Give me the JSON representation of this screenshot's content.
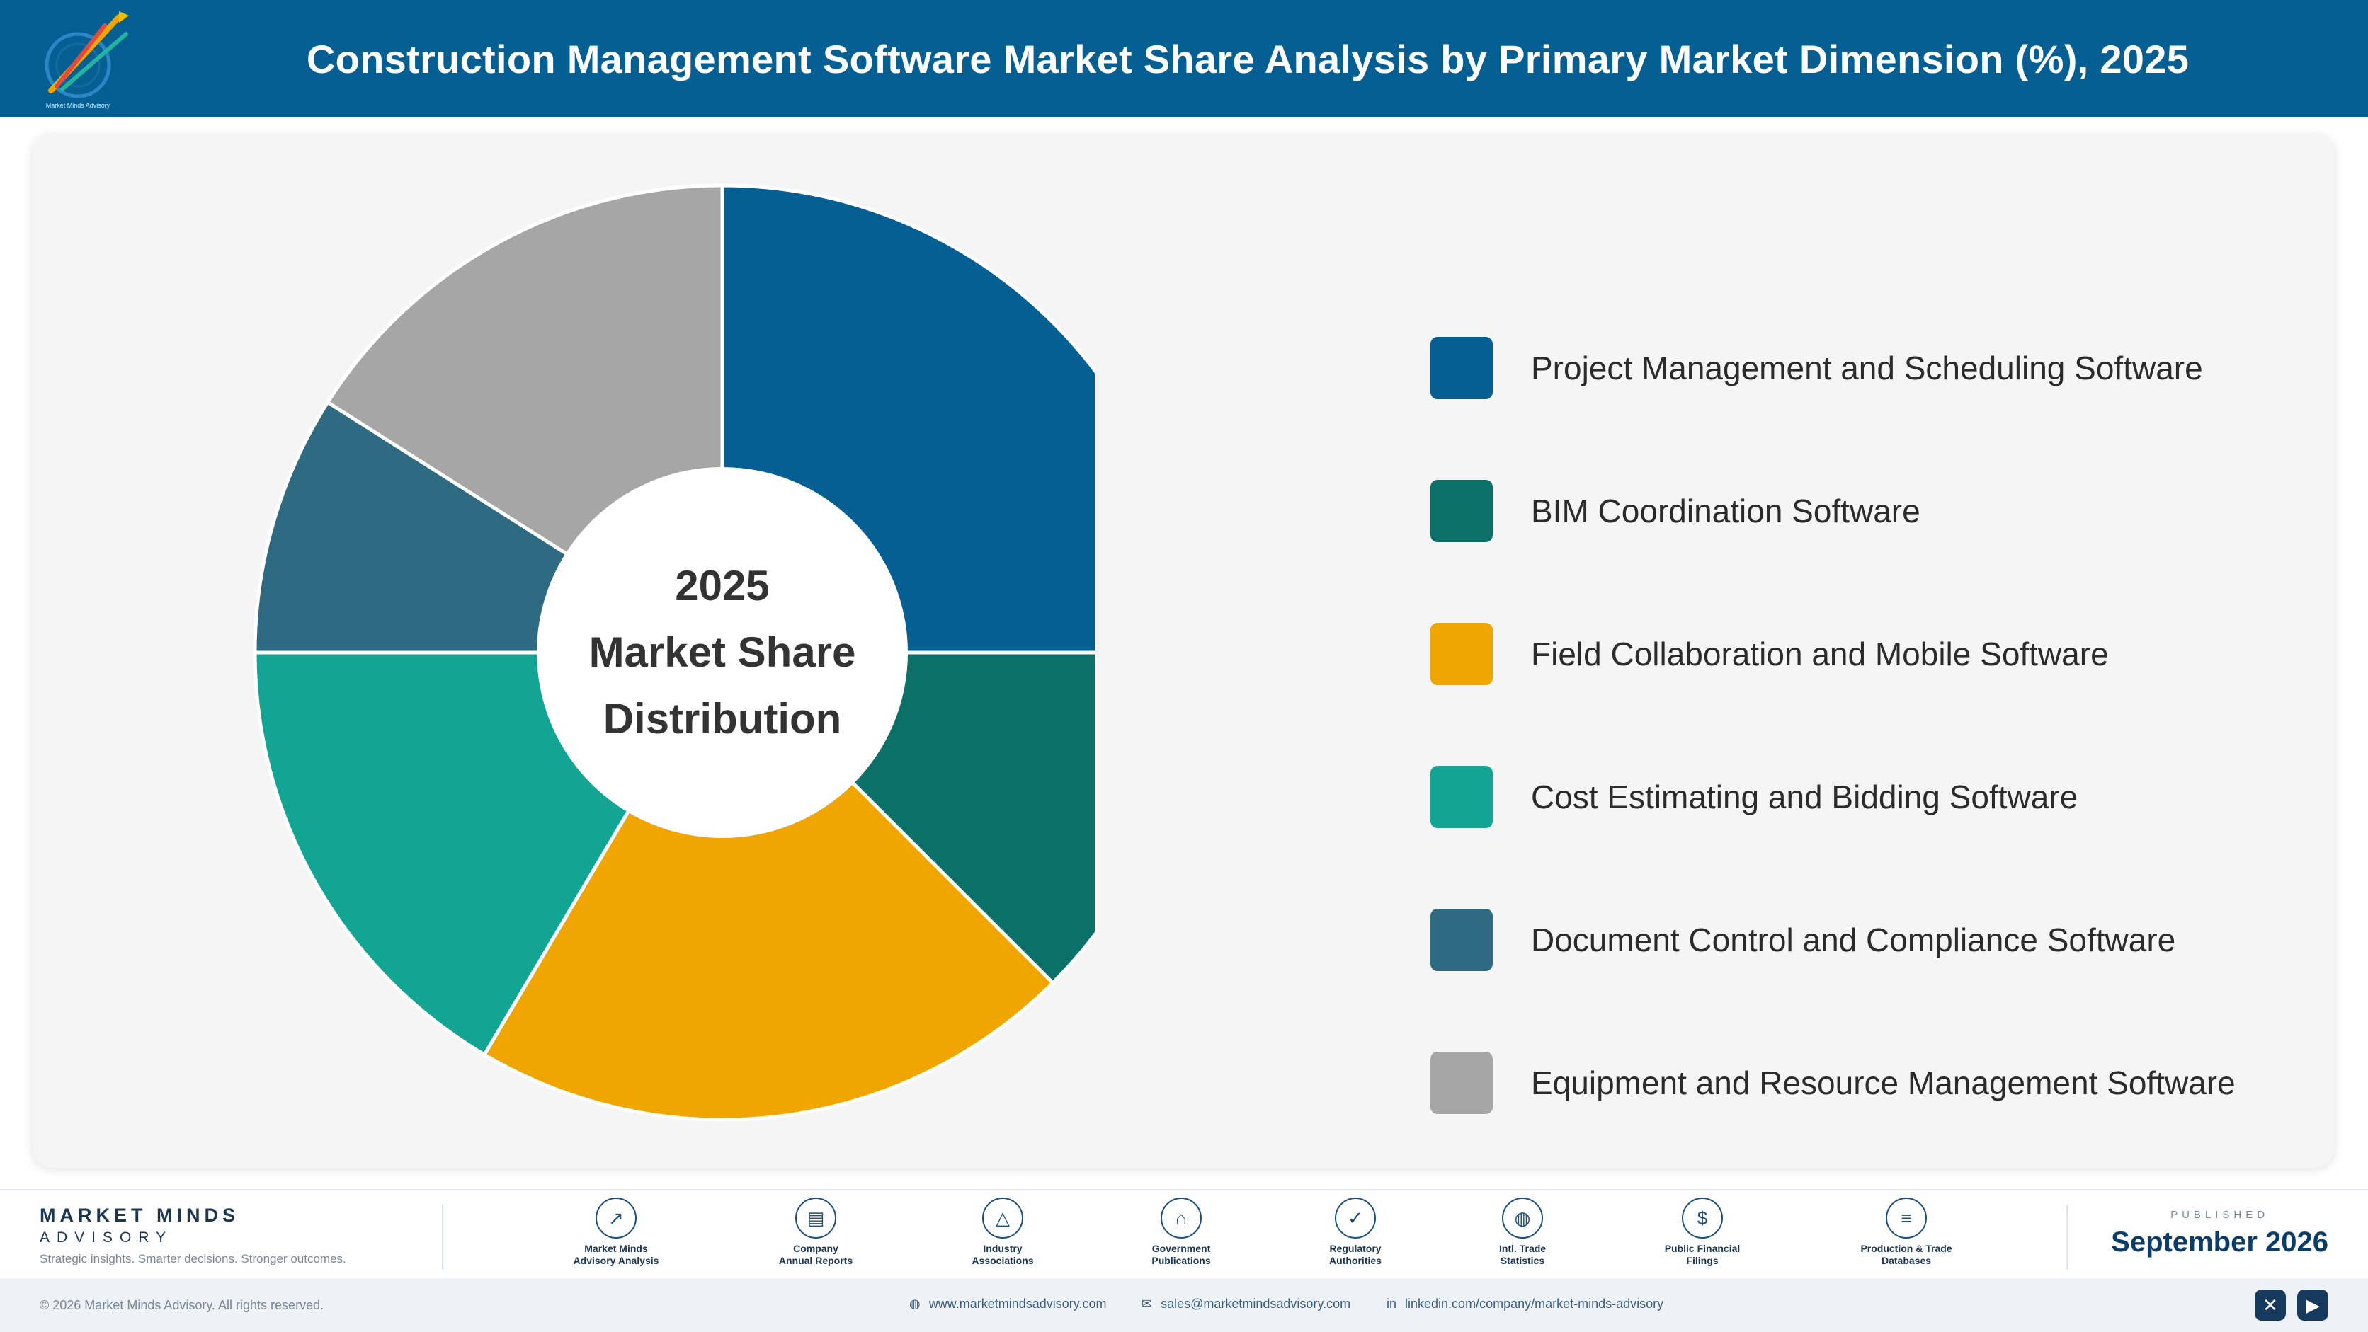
{
  "header": {
    "title": "Construction Management Software Market Share Analysis by Primary Market Dimension (%), 2025",
    "logo_icon": "market-minds-logo"
  },
  "chart_data": {
    "type": "pie",
    "style": "donut",
    "center_text": [
      "2025",
      "Market Share",
      "Distribution"
    ],
    "legend_placement": "right",
    "categories": [
      "Project Management and Scheduling Software",
      "BIM Coordination Software",
      "Field Collaboration and Mobile Software",
      "Cost Estimating and Bidding Software",
      "Document Control and Compliance Software",
      "Equipment and Resource Management Software"
    ],
    "values": [
      25.0,
      12.5,
      21.0,
      16.5,
      9.0,
      16.0
    ],
    "colors": [
      "#065f93",
      "#0b7068",
      "#f0a500",
      "#12a593",
      "#2e6b82",
      "#a6a6a6"
    ]
  },
  "footer": {
    "brand_name": "MARKET MINDS",
    "brand_sub": "ADVISORY",
    "brand_tagline": "Strategic insights. Smarter decisions. Stronger outcomes.",
    "sources": [
      {
        "label": "Market Minds\nAdvisory Analysis",
        "icon": "trend-icon",
        "glyph": "↗"
      },
      {
        "label": "Company\nAnnual Reports",
        "icon": "document-icon",
        "glyph": "▤"
      },
      {
        "label": "Industry\nAssociations",
        "icon": "network-icon",
        "glyph": "△"
      },
      {
        "label": "Government\nPublications",
        "icon": "building-icon",
        "glyph": "⌂"
      },
      {
        "label": "Regulatory\nAuthorities",
        "icon": "shield-icon",
        "glyph": "✓"
      },
      {
        "label": "Intl. Trade\nStatistics",
        "icon": "globe-icon",
        "glyph": "◍"
      },
      {
        "label": "Public Financial\nFilings",
        "icon": "dollar-icon",
        "glyph": "$"
      },
      {
        "label": "Production & Trade\nDatabases",
        "icon": "database-icon",
        "glyph": "≡"
      }
    ],
    "published_label": "PUBLISHED",
    "published_date": "September 2026"
  },
  "bottom": {
    "copyright": "© 2026 Market Minds Advisory. All rights reserved.",
    "website": "www.marketmindsadvisory.com",
    "email": "sales@marketmindsadvisory.com",
    "linkedin": "linkedin.com/company/market-minds-advisory",
    "social": [
      {
        "icon": "x-icon",
        "glyph": "✕"
      },
      {
        "icon": "youtube-icon",
        "glyph": "▶"
      }
    ]
  }
}
